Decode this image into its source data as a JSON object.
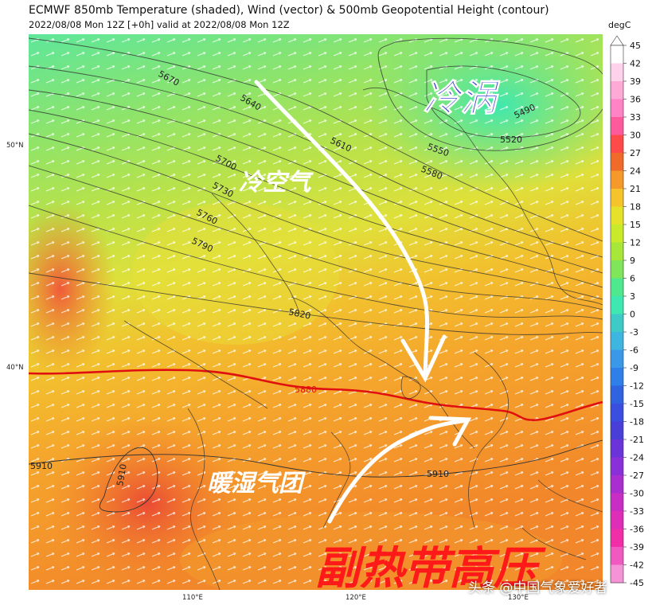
{
  "header": {
    "title": "ECMWF 850mb Temperature (shaded), Wind (vector) & 500mb Geopotential Height (contour)",
    "subtitle": "2022/08/08 Mon 12Z [+0h] valid at 2022/08/08 Mon 12Z"
  },
  "axes": {
    "lat_labels": [
      "50°N",
      "40°N"
    ],
    "lon_labels": [
      "110°E",
      "120°E",
      "130°E"
    ]
  },
  "colorbar": {
    "unit": "degC",
    "ticks": [
      "45",
      "42",
      "39",
      "36",
      "33",
      "30",
      "27",
      "24",
      "21",
      "18",
      "15",
      "12",
      "9",
      "6",
      "3",
      "0",
      "-3",
      "-6",
      "-9",
      "-12",
      "-15",
      "-18",
      "-21",
      "-24",
      "-27",
      "-30",
      "-33",
      "-36",
      "-39",
      "-42",
      "-45"
    ],
    "colors": [
      "#ffffff",
      "#ffd2ec",
      "#ffaad6",
      "#ff83c5",
      "#ff5a9b",
      "#ff4a4a",
      "#f06a2a",
      "#f59a2a",
      "#f5c32a",
      "#e6e22a",
      "#c8ea2a",
      "#a8e63a",
      "#7fe65a",
      "#4fe88e",
      "#3ee8b0",
      "#3ecbc8",
      "#3fb6e0",
      "#3a98e8",
      "#2f7fe8",
      "#2f63e0",
      "#3a4ee0",
      "#4a3ed8",
      "#6a34d8",
      "#8a30d8",
      "#a82ed0",
      "#c82ec4",
      "#de2eb8",
      "#f02ea8",
      "#f05ac0",
      "#f494d6"
    ]
  },
  "contours": {
    "labels": [
      "5670",
      "5640",
      "5610",
      "5550",
      "5580",
      "5520",
      "5490",
      "5700",
      "5730",
      "5760",
      "5790",
      "5820",
      "5880",
      "5910",
      "5910",
      "5910",
      "5910"
    ]
  },
  "annotations": {
    "cold_vortex": "冷涡",
    "cold_air": "冷空气",
    "warm_moist": "暖湿气团",
    "subtropical_high": "副热带高压"
  },
  "watermark": "头条 @中国气象爱好者",
  "colors": {
    "cold_vortex": "#3a3ad8",
    "subtropical_high": "#ff1a1a",
    "contour_5880": "#e01010"
  }
}
